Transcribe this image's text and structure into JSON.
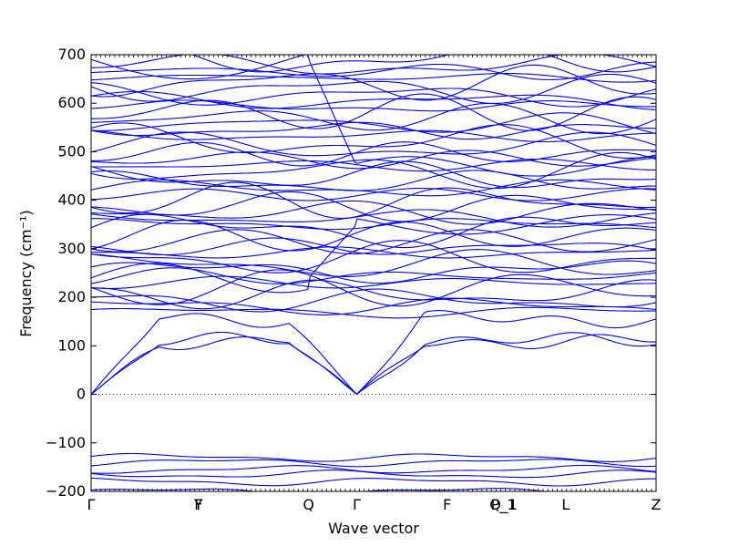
{
  "chart_data": {
    "type": "line",
    "xlabel": "Wave vector",
    "ylabel": "Frequency (cm⁻¹)",
    "ylim": [
      -200,
      700
    ],
    "grid": false,
    "yticks": [
      -200,
      -100,
      0,
      100,
      200,
      300,
      400,
      500,
      600,
      700
    ],
    "ytick_labels": [
      "−200",
      "−100",
      "0",
      "100",
      "200",
      "300",
      "400",
      "500",
      "600",
      "700"
    ],
    "x_path": [
      {
        "label": "Γ",
        "pos": 0.0
      },
      {
        "label": "Y",
        "pos": 0.19
      },
      {
        "label": "F",
        "pos": 0.19
      },
      {
        "label": "Q",
        "pos": 0.385
      },
      {
        "label": "Γ",
        "pos": 0.47
      },
      {
        "label": "F",
        "pos": 0.63
      },
      {
        "label": "P_1",
        "pos": 0.73
      },
      {
        "label": "Q_1",
        "pos": 0.73
      },
      {
        "label": "L",
        "pos": 0.84
      },
      {
        "label": "Z",
        "pos": 1.0
      }
    ],
    "zero_line": 0,
    "colors": {
      "bands": "#0000ff",
      "zero_line": "#000000"
    },
    "bands": {
      "acoustic": [
        {
          "name": "",
          "values": [
            0,
            110,
            110,
            110,
            0,
            110,
            110,
            50,
            110
          ]
        },
        {
          "name": "",
          "values": [
            0,
            110,
            85,
            110,
            0,
            85,
            110,
            60,
            110
          ]
        },
        {
          "name": "",
          "values": [
            0,
            155,
            135,
            155,
            0,
            140,
            155,
            140,
            160
          ]
        }
      ],
      "optical_low": [
        -200,
        -180,
        -165,
        -155,
        -140,
        -130
      ],
      "optical_high_range": [
        160,
        700
      ]
    }
  }
}
